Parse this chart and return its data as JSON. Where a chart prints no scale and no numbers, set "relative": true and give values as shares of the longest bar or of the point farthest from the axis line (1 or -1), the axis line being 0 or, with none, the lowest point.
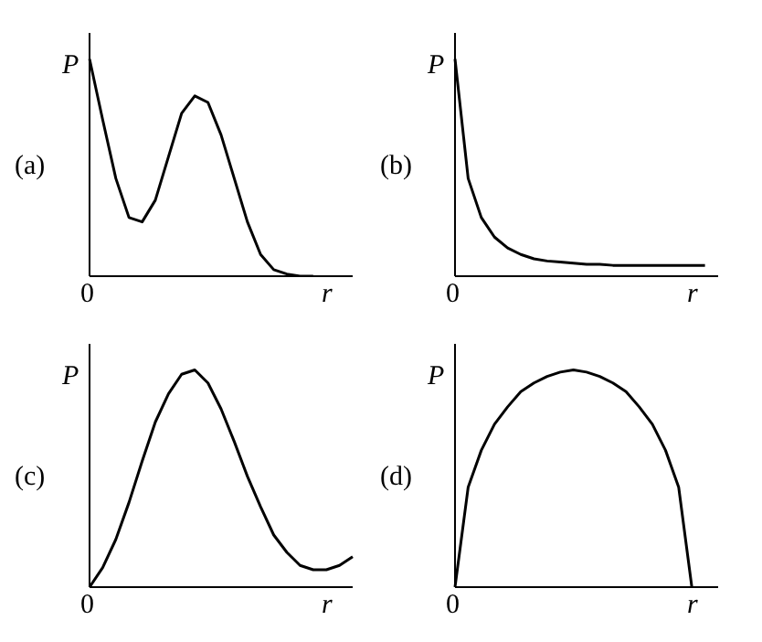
{
  "chart_data": [
    {
      "type": "line",
      "relative": true,
      "ylabel": "P",
      "xlabel": "r",
      "annotations": [
        "(a)",
        "0"
      ],
      "color": "#000000",
      "categories": [
        null,
        null,
        null,
        null,
        null,
        null,
        null,
        null,
        null,
        null,
        null,
        null,
        null,
        null,
        null,
        null,
        null,
        null,
        null,
        null,
        null
      ],
      "values": [
        1.0,
        0.72,
        0.45,
        0.27,
        0.25,
        0.35,
        0.55,
        0.75,
        0.83,
        0.8,
        0.65,
        0.45,
        0.25,
        0.1,
        0.03,
        0.01,
        0,
        0,
        null,
        null,
        null
      ]
    },
    {
      "type": "line",
      "relative": true,
      "ylabel": "P",
      "xlabel": "r",
      "annotations": [
        "(b)",
        "0"
      ],
      "color": "#000000",
      "categories": [
        null,
        null,
        null,
        null,
        null,
        null,
        null,
        null,
        null,
        null,
        null,
        null,
        null,
        null,
        null,
        null,
        null,
        null,
        null,
        null,
        null
      ],
      "values": [
        1.0,
        0.45,
        0.27,
        0.18,
        0.13,
        0.1,
        0.08,
        0.07,
        0.065,
        0.06,
        0.055,
        0.055,
        0.05,
        0.05,
        0.05,
        0.05,
        0.05,
        0.05,
        0.05,
        0.05,
        null
      ]
    },
    {
      "type": "line",
      "relative": true,
      "ylabel": "P",
      "xlabel": "r",
      "annotations": [
        "(c)",
        "0"
      ],
      "color": "#000000",
      "categories": [
        null,
        null,
        null,
        null,
        null,
        null,
        null,
        null,
        null,
        null,
        null,
        null,
        null,
        null,
        null,
        null,
        null,
        null,
        null,
        null,
        null
      ],
      "values": [
        0,
        0.09,
        0.22,
        0.39,
        0.58,
        0.76,
        0.89,
        0.98,
        1,
        0.94,
        0.82,
        0.67,
        0.51,
        0.37,
        0.24,
        0.16,
        0.1,
        0.08,
        0.08,
        0.1,
        0.14
      ]
    },
    {
      "type": "line",
      "relative": true,
      "ylabel": "P",
      "xlabel": "r",
      "annotations": [
        "(d)",
        "0"
      ],
      "color": "#000000",
      "categories": [
        null,
        null,
        null,
        null,
        null,
        null,
        null,
        null,
        null,
        null,
        null,
        null,
        null,
        null,
        null,
        null,
        null,
        null,
        null,
        null,
        null
      ],
      "values": [
        0,
        0.46,
        0.63,
        0.75,
        0.83,
        0.9,
        0.94,
        0.97,
        0.99,
        1,
        0.99,
        0.97,
        0.94,
        0.9,
        0.83,
        0.75,
        0.63,
        0.46,
        0,
        null,
        null
      ]
    }
  ]
}
